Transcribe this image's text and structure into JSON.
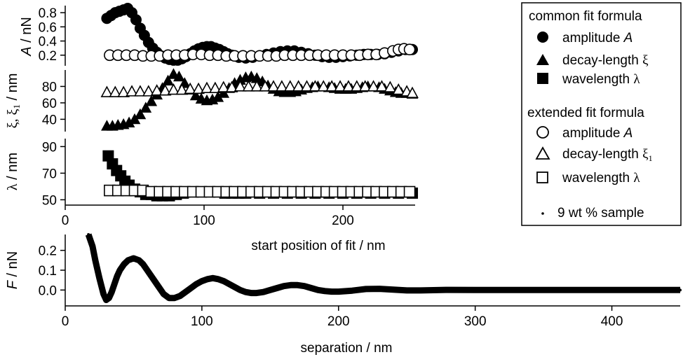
{
  "chart_data": [
    {
      "id": "amplitude",
      "type": "scatter",
      "ylabel": "A / nN",
      "xlim": [
        0,
        252
      ],
      "ylim": [
        0.05,
        0.9
      ],
      "yticks": [
        0.2,
        0.4,
        0.6,
        0.8
      ],
      "ytick_labels": [
        "0.2",
        "0.4",
        "0.6",
        "0.8"
      ],
      "series": [
        {
          "name": "amplitude A (common fit formula)",
          "marker": "filled-circle",
          "x": [
            30,
            33,
            36,
            39,
            42,
            45,
            48,
            51,
            54,
            57,
            60,
            63,
            66,
            69,
            72,
            75,
            78,
            81,
            84,
            87,
            90,
            93,
            96,
            99,
            102,
            105,
            108,
            111,
            114,
            117,
            120,
            125,
            130,
            135,
            140,
            145,
            150,
            155,
            160,
            165,
            170,
            175,
            180,
            185,
            190,
            195,
            200,
            205,
            210,
            215,
            220,
            225,
            230,
            235,
            240,
            245,
            250
          ],
          "y": [
            0.72,
            0.76,
            0.8,
            0.82,
            0.84,
            0.86,
            0.8,
            0.7,
            0.58,
            0.48,
            0.38,
            0.3,
            0.24,
            0.19,
            0.16,
            0.14,
            0.13,
            0.13,
            0.15,
            0.18,
            0.22,
            0.26,
            0.29,
            0.31,
            0.32,
            0.32,
            0.3,
            0.28,
            0.25,
            0.22,
            0.2,
            0.17,
            0.16,
            0.17,
            0.19,
            0.21,
            0.23,
            0.25,
            0.26,
            0.26,
            0.24,
            0.22,
            0.2,
            0.18,
            0.17,
            0.17,
            0.18,
            0.19,
            0.2,
            0.21,
            0.21,
            0.21,
            0.22,
            0.24,
            0.26,
            0.28,
            0.28
          ]
        },
        {
          "name": "amplitude A (extended fit formula)",
          "marker": "open-circle",
          "x": [
            32,
            38,
            44,
            50,
            56,
            62,
            68,
            74,
            80,
            86,
            92,
            98,
            104,
            110,
            116,
            122,
            128,
            134,
            140,
            146,
            152,
            158,
            164,
            170,
            176,
            182,
            188,
            194,
            200,
            206,
            212,
            218,
            224,
            230,
            236,
            240,
            244,
            248
          ],
          "y": [
            0.2,
            0.2,
            0.2,
            0.2,
            0.19,
            0.19,
            0.19,
            0.2,
            0.2,
            0.2,
            0.21,
            0.21,
            0.2,
            0.2,
            0.19,
            0.19,
            0.19,
            0.19,
            0.19,
            0.19,
            0.19,
            0.2,
            0.2,
            0.2,
            0.2,
            0.2,
            0.2,
            0.2,
            0.2,
            0.2,
            0.2,
            0.21,
            0.21,
            0.23,
            0.26,
            0.28,
            0.29,
            0.28
          ]
        }
      ]
    },
    {
      "id": "decay",
      "type": "scatter",
      "ylabel": "ξ, ξ1 / nm",
      "xlim": [
        0,
        252
      ],
      "ylim": [
        25,
        100
      ],
      "yticks": [
        40,
        60,
        80
      ],
      "ytick_labels": [
        "40",
        "60",
        "80"
      ],
      "series": [
        {
          "name": "decay-length ξ (common fit formula)",
          "marker": "filled-triangle",
          "x": [
            30,
            34,
            38,
            42,
            46,
            50,
            54,
            58,
            62,
            66,
            70,
            74,
            78,
            82,
            86,
            90,
            94,
            98,
            102,
            106,
            110,
            114,
            118,
            122,
            126,
            130,
            134,
            138,
            142,
            146,
            150,
            154,
            158,
            162,
            166,
            170,
            174,
            178,
            182,
            186,
            190,
            194,
            198,
            202,
            206,
            210,
            214,
            218,
            222,
            226,
            230,
            234,
            238,
            242,
            246,
            250
          ],
          "y": [
            32,
            32,
            33,
            34,
            36,
            40,
            46,
            54,
            62,
            70,
            78,
            87,
            95,
            92,
            84,
            76,
            69,
            65,
            63,
            64,
            67,
            72,
            78,
            84,
            88,
            91,
            92,
            90,
            86,
            81,
            77,
            74,
            73,
            73,
            74,
            76,
            78,
            79,
            80,
            80,
            79,
            78,
            77,
            77,
            77,
            78,
            79,
            80,
            80,
            79,
            77,
            75,
            73,
            72,
            72,
            71
          ]
        },
        {
          "name": "decay-length ξ1 (extended fit formula)",
          "marker": "open-triangle",
          "x": [
            30,
            36,
            42,
            48,
            54,
            60,
            66,
            72,
            78,
            84,
            90,
            96,
            102,
            108,
            114,
            120,
            126,
            132,
            138,
            144,
            150,
            156,
            162,
            168,
            174,
            180,
            186,
            192,
            198,
            204,
            210,
            216,
            222,
            228,
            234,
            240,
            246,
            250
          ],
          "y": [
            73,
            73,
            73,
            74,
            74,
            74,
            75,
            75,
            76,
            76,
            77,
            77,
            78,
            78,
            79,
            79,
            80,
            80,
            80,
            80,
            80,
            80,
            80,
            80,
            80,
            80,
            80,
            80,
            80,
            80,
            80,
            80,
            80,
            80,
            79,
            76,
            74,
            72
          ]
        }
      ]
    },
    {
      "id": "wavelength",
      "type": "scatter",
      "ylabel": "λ / nm",
      "xlabel": "start position of fit / nm",
      "xlim": [
        0,
        252
      ],
      "ylim": [
        46,
        96
      ],
      "xticks": [
        0,
        100,
        200
      ],
      "xtick_labels": [
        "0",
        "100",
        "200"
      ],
      "yticks": [
        50,
        70,
        90
      ],
      "ytick_labels": [
        "50",
        "70",
        "90"
      ],
      "series": [
        {
          "name": "wavelength λ (common fit formula)",
          "marker": "filled-square",
          "x": [
            31,
            34,
            37,
            40,
            43,
            46,
            50,
            54,
            58,
            62,
            66,
            70,
            75,
            80,
            85,
            90,
            95,
            100,
            105,
            110,
            115,
            120,
            125,
            130,
            140,
            150,
            160,
            170,
            180,
            190,
            200,
            210,
            220,
            230,
            240,
            250
          ],
          "y": [
            83,
            77,
            72,
            68,
            64,
            61,
            58,
            56,
            54,
            54,
            53,
            53,
            53,
            54,
            55,
            56,
            56,
            56,
            56,
            56,
            55,
            55,
            55,
            55,
            55,
            55,
            55,
            55,
            55,
            55,
            55,
            55,
            55,
            55,
            55,
            55
          ]
        },
        {
          "name": "wavelength λ (extended fit formula)",
          "marker": "open-square",
          "x": [
            32,
            38,
            44,
            50,
            56,
            62,
            68,
            74,
            80,
            86,
            92,
            98,
            104,
            110,
            116,
            122,
            128,
            134,
            140,
            146,
            152,
            158,
            164,
            170,
            176,
            182,
            188,
            194,
            200,
            206,
            212,
            218,
            224,
            230,
            236,
            242,
            248
          ],
          "y": [
            57,
            57,
            57,
            57,
            57,
            56,
            56,
            56,
            56,
            56,
            56,
            56,
            56,
            56,
            56,
            56,
            56,
            56,
            56,
            56,
            56,
            56,
            56,
            56,
            56,
            56,
            56,
            56,
            56,
            56,
            56,
            56,
            56,
            56,
            56,
            56,
            56
          ]
        }
      ]
    },
    {
      "id": "force",
      "type": "line",
      "ylabel": "F / nN",
      "xlabel": "separation / nm",
      "xlim": [
        0,
        450
      ],
      "ylim": [
        -0.08,
        0.28
      ],
      "xticks": [
        0,
        100,
        200,
        300,
        400
      ],
      "xtick_labels": [
        "0",
        "100",
        "200",
        "300",
        "400"
      ],
      "yticks": [
        0.0,
        0.1,
        0.2
      ],
      "ytick_labels": [
        "0.0",
        "0.1",
        "0.2"
      ],
      "series": [
        {
          "name": "9 wt % sample",
          "marker": "dot",
          "x": [
            17,
            20,
            22,
            25,
            28,
            30,
            32,
            34,
            36,
            38,
            40,
            43,
            46,
            50,
            54,
            57,
            60,
            64,
            68,
            72,
            76,
            80,
            84,
            88,
            92,
            96,
            100,
            104,
            108,
            112,
            116,
            120,
            124,
            128,
            132,
            136,
            140,
            145,
            150,
            155,
            160,
            165,
            170,
            175,
            180,
            185,
            190,
            195,
            200,
            210,
            220,
            230,
            240,
            250,
            260,
            280,
            300,
            320,
            340,
            360,
            380,
            400,
            420,
            440,
            450
          ],
          "y": [
            0.28,
            0.22,
            0.15,
            0.06,
            -0.02,
            -0.05,
            -0.04,
            -0.01,
            0.03,
            0.07,
            0.1,
            0.13,
            0.15,
            0.16,
            0.15,
            0.13,
            0.1,
            0.06,
            0.02,
            -0.02,
            -0.04,
            -0.04,
            -0.03,
            -0.01,
            0.01,
            0.03,
            0.045,
            0.055,
            0.06,
            0.055,
            0.045,
            0.03,
            0.015,
            0.0,
            -0.01,
            -0.015,
            -0.015,
            -0.01,
            0.0,
            0.01,
            0.02,
            0.025,
            0.025,
            0.02,
            0.01,
            0.0,
            -0.005,
            -0.008,
            -0.008,
            -0.003,
            0.005,
            0.006,
            0.002,
            -0.002,
            -0.002,
            0.001,
            0.0,
            0.0,
            0.0,
            0.0,
            0.0,
            0.0,
            0.0,
            0.0,
            0.0
          ]
        }
      ]
    }
  ],
  "legend": {
    "header_common": "common fit formula",
    "header_extended": "extended fit formula",
    "amplitude_label": "amplitude ",
    "amplitude_symbol": "A",
    "decay_common_label": "decay-length ",
    "decay_common_symbol": "ξ",
    "wavelength_label": "wavelength ",
    "wavelength_symbol": "λ",
    "decay_extended_symbol": "ξ",
    "decay_extended_subscript": "1",
    "sample_label": "9 wt % sample"
  },
  "labels": {
    "a_ylabel_sym": "A",
    "a_ylabel_unit": " / nN",
    "xi_ylabel_sym": "ξ, ξ",
    "xi_ylabel_sub": "1",
    "xi_ylabel_unit": " / nm",
    "lambda_ylabel_sym": "λ",
    "lambda_ylabel_unit": " / nm",
    "f_ylabel_sym": "F",
    "f_ylabel_unit": " / nN",
    "top_xlabel": "start position of fit / nm",
    "bottom_xlabel": "separation / nm"
  }
}
